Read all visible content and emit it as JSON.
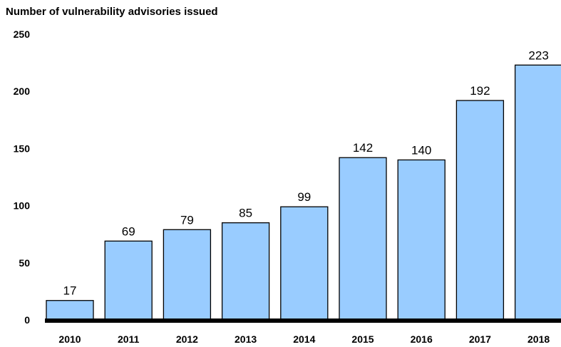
{
  "chart_data": {
    "type": "bar",
    "title": "Number of vulnerability advisories issued",
    "categories": [
      "2010",
      "2011",
      "2012",
      "2013",
      "2014",
      "2015",
      "2016",
      "2017",
      "2018"
    ],
    "values": [
      17,
      69,
      79,
      85,
      99,
      142,
      140,
      192,
      223
    ],
    "ylim": [
      0,
      250
    ],
    "yticks": [
      "0",
      "50",
      "100",
      "150",
      "200",
      "250"
    ],
    "xlabel": "",
    "ylabel": "",
    "grid": false,
    "legend": "none",
    "colors": {
      "bar_fill": "#99ccff",
      "bar_stroke": "#000000",
      "axis": "#000000"
    }
  }
}
